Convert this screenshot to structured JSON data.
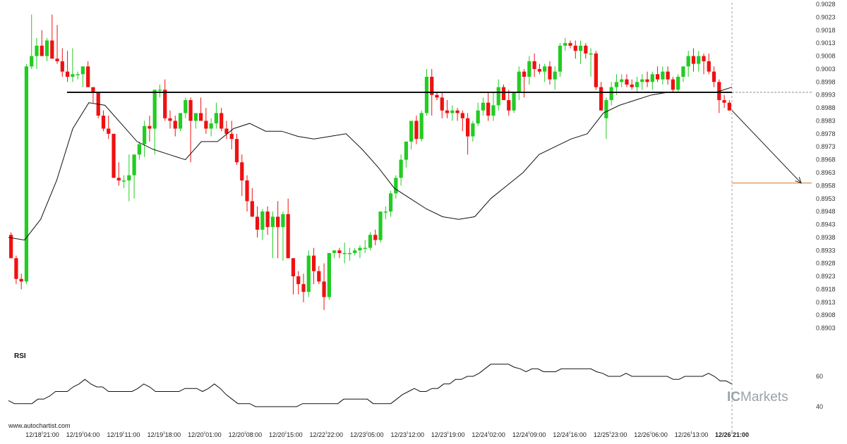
{
  "source_text": "www.autochartist.com",
  "brand": {
    "prefix": "IC",
    "suffix": "Markets"
  },
  "colors": {
    "bull": "#22cc22",
    "bear": "#ee1111",
    "ma": "#111111",
    "level": "#111111",
    "target": "#d9731f",
    "rsi": "#111111"
  },
  "chart_data": [
    {
      "type": "candlestick",
      "y_axis_side": "right",
      "ylim": [
        0.8898,
        0.9028
      ],
      "y_ticks": [
        "0.9028",
        "0.9023",
        "0.9018",
        "0.9013",
        "0.9008",
        "0.9003",
        "0.8998",
        "0.8993",
        "0.8988",
        "0.8983",
        "0.8978",
        "0.8973",
        "0.8968",
        "0.8963",
        "0.8958",
        "0.8953",
        "0.8948",
        "0.8943",
        "0.8938",
        "0.8933",
        "0.8928",
        "0.8923",
        "0.8918",
        "0.8913",
        "0.8908",
        "0.8903"
      ],
      "x_tick_labels": [
        "12/18 21:00",
        "12/19 04:00",
        "12/19 11:00",
        "12/19 18:00",
        "12/20 01:00",
        "12/20 08:00",
        "12/20 15:00",
        "12/22 22:00",
        "12/23 05:00",
        "12/23 12:00",
        "12/23 19:00",
        "12/24 02:00",
        "12/24 09:00",
        "12/24 16:00",
        "12/25 23:00",
        "12/26 06:00",
        "12/26 13:00",
        "12/26 21:00"
      ],
      "current_label": "12/26 21:00",
      "candles_ohlc": [
        [
          0.8939,
          0.894,
          0.893,
          0.893
        ],
        [
          0.893,
          0.8931,
          0.892,
          0.8922
        ],
        [
          0.8922,
          0.8924,
          0.8918,
          0.8921
        ],
        [
          0.8921,
          0.9005,
          0.892,
          0.9004
        ],
        [
          0.9004,
          0.9024,
          0.9003,
          0.9008
        ],
        [
          0.9008,
          0.9015,
          0.9003,
          0.9012
        ],
        [
          0.9012,
          0.9018,
          0.9008,
          0.9008
        ],
        [
          0.9008,
          0.9015,
          0.9006,
          0.9014
        ],
        [
          0.9014,
          0.9024,
          0.9009,
          0.9007
        ],
        [
          0.9007,
          0.902,
          0.9005,
          0.9006
        ],
        [
          0.9006,
          0.9011,
          0.9,
          0.9002
        ],
        [
          0.9002,
          0.901,
          0.8998,
          0.9
        ],
        [
          0.9,
          0.9011,
          0.8998,
          0.9001
        ],
        [
          0.9001,
          0.9002,
          0.8999,
          0.9001
        ],
        [
          0.9001,
          0.9004,
          0.8996,
          0.9004
        ],
        [
          0.9004,
          0.9006,
          0.8997,
          0.8996
        ],
        [
          0.8996,
          0.8996,
          0.899,
          0.8994
        ],
        [
          0.8994,
          0.8994,
          0.8984,
          0.8985
        ],
        [
          0.8985,
          0.8987,
          0.8979,
          0.898
        ],
        [
          0.898,
          0.8985,
          0.8976,
          0.8978
        ],
        [
          0.8978,
          0.8978,
          0.8961,
          0.8961
        ],
        [
          0.8961,
          0.8967,
          0.8958,
          0.896
        ],
        [
          0.896,
          0.8962,
          0.8957,
          0.896
        ],
        [
          0.896,
          0.897,
          0.8952,
          0.8962
        ],
        [
          0.8962,
          0.897,
          0.8953,
          0.897
        ],
        [
          0.897,
          0.8975,
          0.8968,
          0.8974
        ],
        [
          0.8974,
          0.8983,
          0.8969,
          0.8981
        ],
        [
          0.8981,
          0.8985,
          0.8975,
          0.898
        ],
        [
          0.898,
          0.8995,
          0.897,
          0.8995
        ],
        [
          0.8995,
          0.8997,
          0.8992,
          0.8995
        ],
        [
          0.8995,
          0.8999,
          0.8983,
          0.8984
        ],
        [
          0.8984,
          0.8987,
          0.898,
          0.8983
        ],
        [
          0.8983,
          0.8985,
          0.8977,
          0.898
        ],
        [
          0.898,
          0.8986,
          0.8979,
          0.8986
        ],
        [
          0.8986,
          0.8992,
          0.8984,
          0.8991
        ],
        [
          0.8991,
          0.8992,
          0.8967,
          0.8983
        ],
        [
          0.8983,
          0.8986,
          0.898,
          0.8986
        ],
        [
          0.8986,
          0.8992,
          0.8983,
          0.8983
        ],
        [
          0.8983,
          0.8988,
          0.8978,
          0.898
        ],
        [
          0.898,
          0.8984,
          0.8977,
          0.8982
        ],
        [
          0.8982,
          0.899,
          0.898,
          0.8986
        ],
        [
          0.8986,
          0.8988,
          0.8979,
          0.898
        ],
        [
          0.898,
          0.8983,
          0.8976,
          0.8978
        ],
        [
          0.8978,
          0.8983,
          0.8972,
          0.8976
        ],
        [
          0.8976,
          0.8978,
          0.8966,
          0.8967
        ],
        [
          0.8967,
          0.897,
          0.8954,
          0.896
        ],
        [
          0.896,
          0.8962,
          0.8948,
          0.8952
        ],
        [
          0.8952,
          0.8957,
          0.8946,
          0.8946
        ],
        [
          0.8946,
          0.895,
          0.8938,
          0.8941
        ],
        [
          0.8941,
          0.8949,
          0.8937,
          0.8948
        ],
        [
          0.8948,
          0.895,
          0.8939,
          0.8942
        ],
        [
          0.8942,
          0.8948,
          0.893,
          0.8946
        ],
        [
          0.8946,
          0.8952,
          0.893,
          0.8942
        ],
        [
          0.8942,
          0.8948,
          0.8929,
          0.8947
        ],
        [
          0.8947,
          0.8953,
          0.893,
          0.893
        ],
        [
          0.893,
          0.893,
          0.8916,
          0.8923
        ],
        [
          0.8923,
          0.8925,
          0.8916,
          0.892
        ],
        [
          0.892,
          0.8924,
          0.8913,
          0.8917
        ],
        [
          0.8917,
          0.8933,
          0.8915,
          0.8931
        ],
        [
          0.8931,
          0.8934,
          0.892,
          0.8925
        ],
        [
          0.8925,
          0.8927,
          0.892,
          0.8921
        ],
        [
          0.8921,
          0.8928,
          0.891,
          0.8915
        ],
        [
          0.8915,
          0.893,
          0.8914,
          0.8932
        ],
        [
          0.8932,
          0.8933,
          0.893,
          0.8933
        ],
        [
          0.8933,
          0.8934,
          0.893,
          0.8932
        ],
        [
          0.8932,
          0.8936,
          0.8928,
          0.8932
        ],
        [
          0.8932,
          0.8934,
          0.8929,
          0.8932
        ],
        [
          0.8932,
          0.8934,
          0.8931,
          0.8933
        ],
        [
          0.8933,
          0.8935,
          0.893,
          0.8934
        ],
        [
          0.8934,
          0.8937,
          0.8932,
          0.8934
        ],
        [
          0.8934,
          0.894,
          0.8933,
          0.8939
        ],
        [
          0.8939,
          0.8941,
          0.8935,
          0.8937
        ],
        [
          0.8937,
          0.8948,
          0.8936,
          0.8948
        ],
        [
          0.8948,
          0.895,
          0.8945,
          0.8948
        ],
        [
          0.8948,
          0.8956,
          0.8946,
          0.8955
        ],
        [
          0.8955,
          0.8962,
          0.8953,
          0.8961
        ],
        [
          0.8961,
          0.897,
          0.8958,
          0.8968
        ],
        [
          0.8968,
          0.8975,
          0.8965,
          0.8975
        ],
        [
          0.8975,
          0.8983,
          0.8972,
          0.8983
        ],
        [
          0.8983,
          0.8985,
          0.8974,
          0.8976
        ],
        [
          0.8976,
          0.8987,
          0.8975,
          0.8986
        ],
        [
          0.8986,
          0.9003,
          0.8985,
          0.9
        ],
        [
          0.9,
          0.9003,
          0.8985,
          0.8993
        ],
        [
          0.8993,
          0.8994,
          0.8991,
          0.8992
        ],
        [
          0.8992,
          0.8994,
          0.8984,
          0.8987
        ],
        [
          0.8987,
          0.8991,
          0.8984,
          0.8986
        ],
        [
          0.8986,
          0.8989,
          0.8983,
          0.8987
        ],
        [
          0.8987,
          0.8988,
          0.8983,
          0.8986
        ],
        [
          0.8986,
          0.8987,
          0.8979,
          0.8984
        ],
        [
          0.8984,
          0.8986,
          0.897,
          0.8977
        ],
        [
          0.8977,
          0.8983,
          0.8975,
          0.8982
        ],
        [
          0.8982,
          0.899,
          0.8981,
          0.8987
        ],
        [
          0.8987,
          0.8992,
          0.8985,
          0.899
        ],
        [
          0.899,
          0.8994,
          0.8983,
          0.8985
        ],
        [
          0.8985,
          0.8994,
          0.8983,
          0.8989
        ],
        [
          0.8989,
          0.8999,
          0.8987,
          0.8996
        ],
        [
          0.8996,
          0.8997,
          0.8992,
          0.8991
        ],
        [
          0.8991,
          0.8995,
          0.8985,
          0.8987
        ],
        [
          0.8987,
          0.8994,
          0.8986,
          0.8994
        ],
        [
          0.8994,
          0.9004,
          0.8991,
          0.9002
        ],
        [
          0.9002,
          0.9003,
          0.8992,
          0.9
        ],
        [
          0.9,
          0.9008,
          0.8997,
          0.9006
        ],
        [
          0.9006,
          0.9009,
          0.9,
          0.9003
        ],
        [
          0.9003,
          0.9005,
          0.9001,
          0.9002
        ],
        [
          0.9002,
          0.9005,
          0.8998,
          0.9004
        ],
        [
          0.9004,
          0.9006,
          0.8997,
          0.8999
        ],
        [
          0.8999,
          0.9004,
          0.8995,
          0.9002
        ],
        [
          0.9002,
          0.9013,
          0.9,
          0.9012
        ],
        [
          0.9012,
          0.9015,
          0.901,
          0.9013
        ],
        [
          0.9013,
          0.9014,
          0.9011,
          0.9012
        ],
        [
          0.9012,
          0.9014,
          0.9007,
          0.901
        ],
        [
          0.901,
          0.9014,
          0.9005,
          0.9012
        ],
        [
          0.9012,
          0.9013,
          0.9007,
          0.9009
        ],
        [
          0.9009,
          0.9011,
          0.9,
          0.9009
        ],
        [
          0.9009,
          0.901,
          0.8995,
          0.8996
        ],
        [
          0.8996,
          0.8998,
          0.8987,
          0.8987
        ],
        [
          0.8984,
          0.8992,
          0.8976,
          0.8991
        ],
        [
          0.8991,
          0.8998,
          0.8989,
          0.8996
        ],
        [
          0.8996,
          0.9001,
          0.8993,
          0.8998
        ],
        [
          0.8998,
          0.9001,
          0.8996,
          0.8999
        ],
        [
          0.8999,
          0.9001,
          0.8996,
          0.8997
        ],
        [
          0.8997,
          0.8999,
          0.8995,
          0.8996
        ],
        [
          0.8996,
          0.9,
          0.8994,
          0.8998
        ],
        [
          0.8998,
          0.9001,
          0.8995,
          0.8999
        ],
        [
          0.8999,
          0.9002,
          0.8996,
          0.8998
        ],
        [
          0.8998,
          0.9002,
          0.8995,
          0.9001
        ],
        [
          0.9001,
          0.9004,
          0.8998,
          0.8999
        ],
        [
          0.8999,
          0.9004,
          0.8997,
          0.9002
        ],
        [
          0.9002,
          0.9004,
          0.8997,
          0.8999
        ],
        [
          0.8999,
          0.9,
          0.8994,
          0.8995
        ],
        [
          0.8995,
          0.9001,
          0.8994,
          0.9
        ],
        [
          0.9,
          0.9004,
          0.8998,
          0.9004
        ],
        [
          0.9004,
          0.901,
          0.9,
          0.9008
        ],
        [
          0.9008,
          0.9011,
          0.9002,
          0.9005
        ],
        [
          0.9005,
          0.901,
          0.9002,
          0.9008
        ],
        [
          0.9008,
          0.9009,
          0.9001,
          0.9006
        ],
        [
          0.9006,
          0.9009,
          0.9001,
          0.9002
        ],
        [
          0.9002,
          0.9004,
          0.8996,
          0.8998
        ],
        [
          0.8998,
          0.8999,
          0.8986,
          0.8991
        ],
        [
          0.8991,
          0.8993,
          0.8988,
          0.899
        ],
        [
          0.899,
          0.8991,
          0.8987,
          0.8987
        ]
      ],
      "moving_average": [
        0.8938,
        0.8937,
        0.8945,
        0.896,
        0.898,
        0.899,
        0.8989,
        0.8982,
        0.8975,
        0.8972,
        0.897,
        0.8968,
        0.8975,
        0.8975,
        0.898,
        0.8982,
        0.8979,
        0.8979,
        0.8977,
        0.8976,
        0.8977,
        0.8978,
        0.8972,
        0.8965,
        0.8957,
        0.8953,
        0.8949,
        0.8946,
        0.8945,
        0.8946,
        0.8953,
        0.8958,
        0.8963,
        0.897,
        0.8973,
        0.8976,
        0.8978,
        0.8986,
        0.8989,
        0.8991,
        0.8993,
        0.8994,
        0.8994,
        0.8994,
        0.8994,
        0.8996
      ],
      "resistance_level": 0.8994,
      "target_level": 0.8959,
      "rsi": {
        "title": "RSI",
        "y_ticks": [
          "60",
          "40"
        ],
        "ylim": [
          36,
          72
        ],
        "values": [
          44,
          42,
          42,
          42,
          42,
          45,
          45,
          47,
          50,
          50,
          50,
          53,
          55,
          58,
          55,
          53,
          53,
          50,
          50,
          50,
          50,
          50,
          52,
          55,
          53,
          50,
          50,
          50,
          50,
          50,
          52,
          52,
          52,
          50,
          52,
          55,
          52,
          48,
          45,
          42,
          42,
          42,
          40,
          40,
          40,
          40,
          40,
          40,
          40,
          40,
          42,
          42,
          42,
          42,
          42,
          42,
          42,
          45,
          45,
          45,
          45,
          45,
          42,
          42,
          42,
          42,
          45,
          48,
          50,
          52,
          50,
          50,
          52,
          52,
          55,
          55,
          58,
          58,
          60,
          60,
          62,
          65,
          68,
          68,
          68,
          68,
          66,
          65,
          63,
          65,
          65,
          63,
          63,
          63,
          65,
          65,
          65,
          65,
          65,
          65,
          63,
          62,
          60,
          60,
          60,
          62,
          60,
          60,
          60,
          60,
          60,
          60,
          60,
          58,
          58,
          60,
          60,
          60,
          60,
          62,
          60,
          57,
          57,
          55
        ]
      }
    }
  ]
}
